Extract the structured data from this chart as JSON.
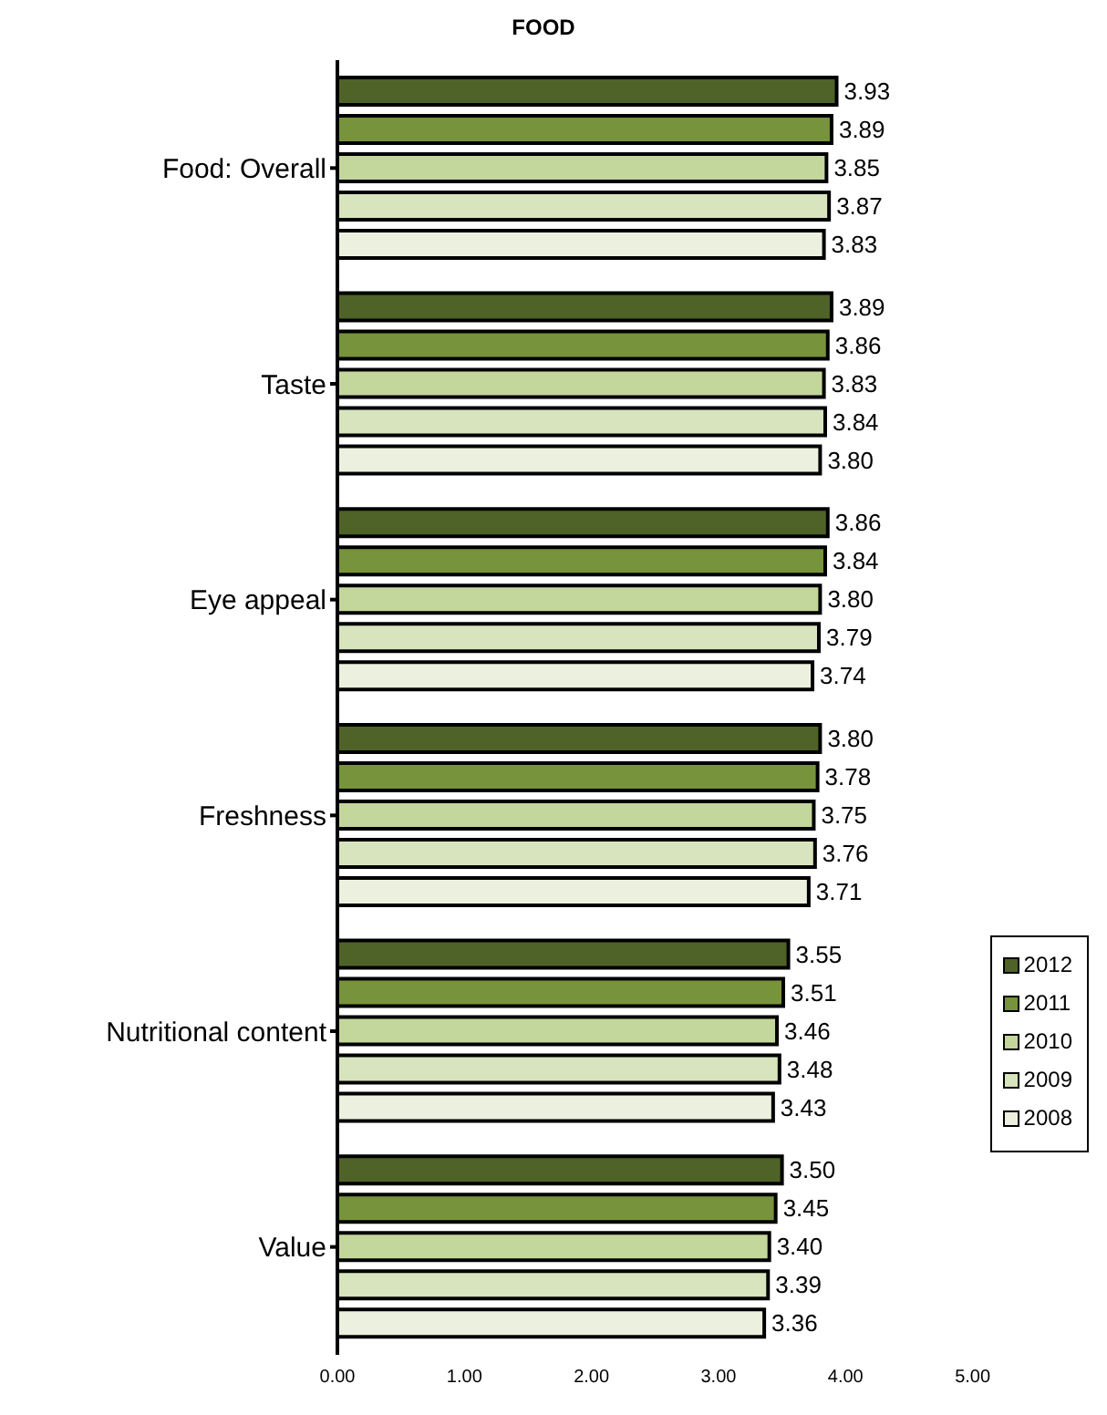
{
  "chart_data": {
    "type": "bar",
    "title": "FOOD",
    "orientation": "horizontal",
    "categories": [
      "Food: Overall",
      "Taste",
      "Eye appeal",
      "Freshness",
      "Nutritional content",
      "Value"
    ],
    "series": [
      {
        "name": "2012",
        "color": "#4f6228",
        "values": [
          3.93,
          3.89,
          3.86,
          3.8,
          3.55,
          3.5
        ],
        "value_labels": [
          "3.93",
          "3.89",
          "3.86",
          "3.80",
          "3.55",
          "3.50"
        ]
      },
      {
        "name": "2011",
        "color": "#77933c",
        "values": [
          3.89,
          3.86,
          3.84,
          3.78,
          3.51,
          3.45
        ],
        "value_labels": [
          "3.89",
          "3.86",
          "3.84",
          "3.78",
          "3.51",
          "3.45"
        ]
      },
      {
        "name": "2010",
        "color": "#c3d69b",
        "values": [
          3.85,
          3.83,
          3.8,
          3.75,
          3.46,
          3.4
        ],
        "value_labels": [
          "3.85",
          "3.83",
          "3.80",
          "3.75",
          "3.46",
          "3.40"
        ]
      },
      {
        "name": "2009",
        "color": "#d7e4bd",
        "values": [
          3.87,
          3.84,
          3.79,
          3.76,
          3.48,
          3.39
        ],
        "value_labels": [
          "3.87",
          "3.84",
          "3.79",
          "3.76",
          "3.48",
          "3.39"
        ]
      },
      {
        "name": "2008",
        "color": "#ebf1de",
        "values": [
          3.83,
          3.8,
          3.74,
          3.71,
          3.43,
          3.36
        ],
        "value_labels": [
          "3.83",
          "3.80",
          "3.74",
          "3.71",
          "3.43",
          "3.36"
        ]
      }
    ],
    "xlim": [
      0,
      5
    ],
    "xticks": [
      {
        "value": 0,
        "label": "0.00"
      },
      {
        "value": 1,
        "label": "1.00"
      },
      {
        "value": 2,
        "label": "2.00"
      },
      {
        "value": 3,
        "label": "3.00"
      },
      {
        "value": 4,
        "label": "4.00"
      },
      {
        "value": 5,
        "label": "5.00"
      }
    ],
    "legend": "right",
    "grid": false
  }
}
